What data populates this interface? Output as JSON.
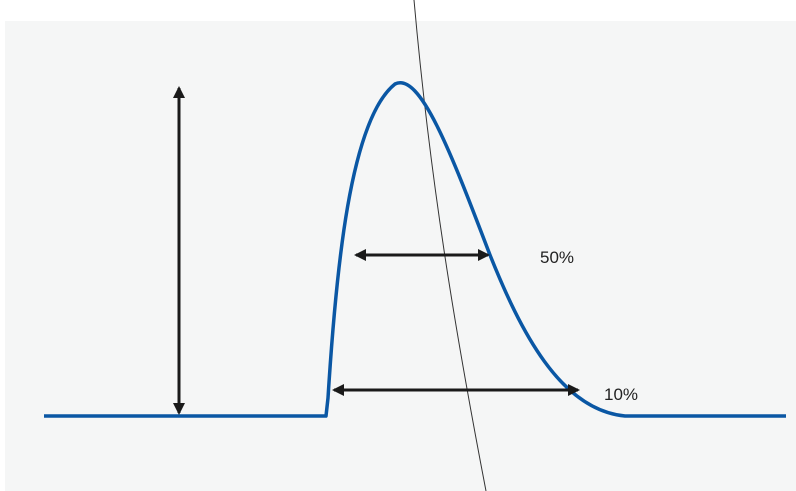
{
  "diagram": {
    "labels": {
      "half_width": "50%",
      "tenth_width": "10%"
    },
    "colors": {
      "panel_background": "#f5f6f6",
      "pulse_curve": "#0a57a4",
      "arrows": "#1a1a1a",
      "crossing_line": "#333333",
      "label_text": "#222222"
    }
  }
}
